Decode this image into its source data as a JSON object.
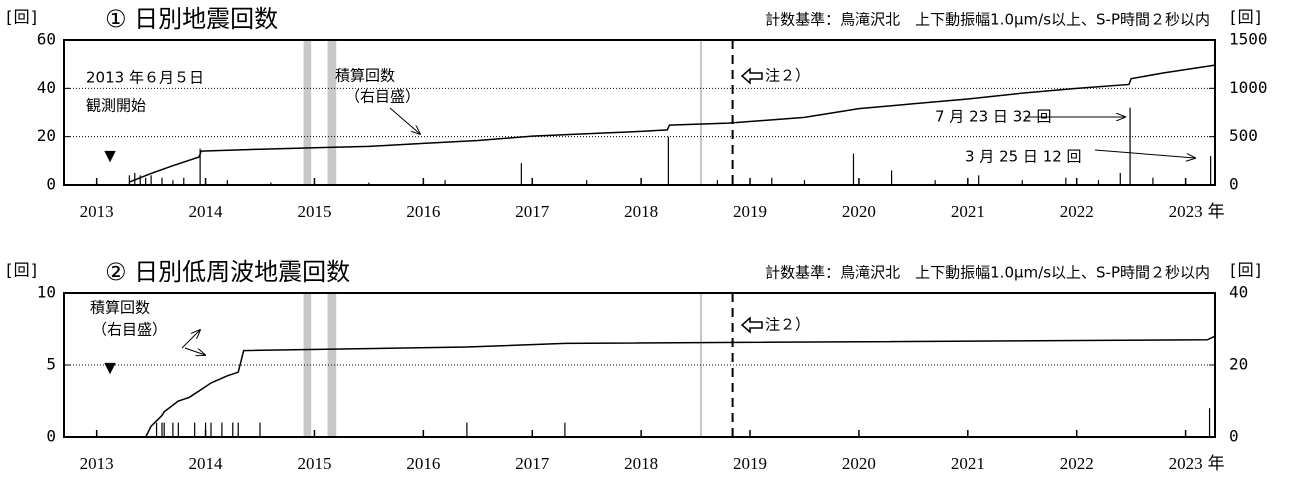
{
  "chart_data": [
    {
      "type": "bar_line",
      "title": "① 日別地震回数",
      "subtitle": "計数基準：鳥滝沢北　上下動振幅1.0μm/s以上、S-P時間２秒以内",
      "y_label": "[回]",
      "y2_label": "[回]",
      "x_unit": "年",
      "xlim": [
        2012.7,
        2023.27
      ],
      "xticks": [
        2013,
        2014,
        2015,
        2016,
        2017,
        2018,
        2019,
        2020,
        2021,
        2022,
        2023
      ],
      "ylim": [
        0,
        60
      ],
      "yticks": [
        0,
        20,
        40,
        60
      ],
      "y2lim": [
        0,
        1500
      ],
      "y2ticks": [
        0,
        500,
        1000,
        1500
      ],
      "grid": true,
      "shaded_periods": [
        [
          2014.9,
          2014.97
        ],
        [
          2015.12,
          2015.2
        ],
        [
          2018.54,
          2018.56
        ]
      ],
      "note_line_x": 2018.84,
      "series": [
        {
          "color": "#000000",
          "x": [
            2013.3,
            2013.35,
            2013.4,
            2013.45,
            2013.5,
            2013.6,
            2013.7,
            2013.8,
            2013.95,
            2014.2,
            2014.6,
            2015.5,
            2016.2,
            2016.9,
            2017.5,
            2018.25,
            2018.7,
            2019.2,
            2019.5,
            2019.95,
            2020.3,
            2020.7,
            2021.1,
            2021.5,
            2021.9,
            2022.2,
            2022.4,
            2022.49,
            2022.7,
            2023.0,
            2023.23
          ],
          "values": [
            4,
            5,
            4,
            3,
            4,
            3,
            2,
            3,
            15,
            2,
            1,
            1,
            2,
            9,
            2,
            20,
            2,
            3,
            2,
            13,
            6,
            2,
            4,
            2,
            3,
            2,
            5,
            32,
            3,
            2,
            12
          ]
        },
        {
          "color": "#000000",
          "axis": "y2",
          "x": [
            2013.3,
            2013.5,
            2013.7,
            2013.94,
            2013.96,
            2014.5,
            2015,
            2015.5,
            2016,
            2016.5,
            2017,
            2017.5,
            2018,
            2018.24,
            2018.26,
            2018.8,
            2019.5,
            2020,
            2020.5,
            2021,
            2021.5,
            2022,
            2022.48,
            2022.5,
            2022.8,
            2023.27
          ],
          "values": [
            30,
            120,
            200,
            290,
            350,
            370,
            385,
            400,
            430,
            460,
            505,
            530,
            555,
            570,
            620,
            640,
            700,
            790,
            840,
            890,
            950,
            1000,
            1040,
            1100,
            1160,
            1240
          ]
        }
      ],
      "annotations": [
        "2013 年６月５日",
        "観測開始",
        "積算回数",
        "（右目盛）",
        "注２）",
        "7 月 23 日 32 回",
        "3 月 25 日 12 回",
        "▼"
      ]
    },
    {
      "type": "bar_line",
      "title": "② 日別低周波地震回数",
      "subtitle": "計数基準：鳥滝沢北　上下動振幅1.0μm/s以上、S-P時間２秒以内",
      "y_label": "[回]",
      "y2_label": "[回]",
      "x_unit": "年",
      "xlim": [
        2012.7,
        2023.27
      ],
      "xticks": [
        2013,
        2014,
        2015,
        2016,
        2017,
        2018,
        2019,
        2020,
        2021,
        2022,
        2023
      ],
      "ylim": [
        0,
        10
      ],
      "yticks": [
        0,
        5,
        10
      ],
      "y2lim": [
        0,
        40
      ],
      "y2ticks": [
        0,
        20,
        40
      ],
      "grid": true,
      "shaded_periods": [
        [
          2014.9,
          2014.97
        ],
        [
          2015.12,
          2015.2
        ],
        [
          2018.54,
          2018.56
        ]
      ],
      "note_line_x": 2018.84,
      "series": [
        {
          "color": "#000000",
          "x": [
            2013.55,
            2013.6,
            2013.62,
            2013.7,
            2013.75,
            2013.9,
            2014.0,
            2014.05,
            2014.15,
            2014.25,
            2014.3,
            2014.5,
            2016.4,
            2017.3,
            2023.22
          ],
          "values": [
            1,
            1,
            1,
            1,
            1,
            1,
            1,
            1,
            1,
            1,
            1,
            1,
            1,
            1,
            2
          ]
        },
        {
          "color": "#000000",
          "axis": "y2",
          "x": [
            2013.45,
            2013.5,
            2013.6,
            2013.62,
            2013.75,
            2013.85,
            2013.95,
            2014.05,
            2014.2,
            2014.3,
            2014.35,
            2016.4,
            2017.3,
            2023.2,
            2023.27
          ],
          "values": [
            0,
            3,
            6,
            7,
            10,
            11,
            13,
            15,
            17,
            18,
            24,
            25,
            26,
            27,
            28
          ]
        }
      ],
      "annotations": [
        "積算回数",
        "（右目盛）",
        "注２）",
        "▼"
      ]
    }
  ]
}
